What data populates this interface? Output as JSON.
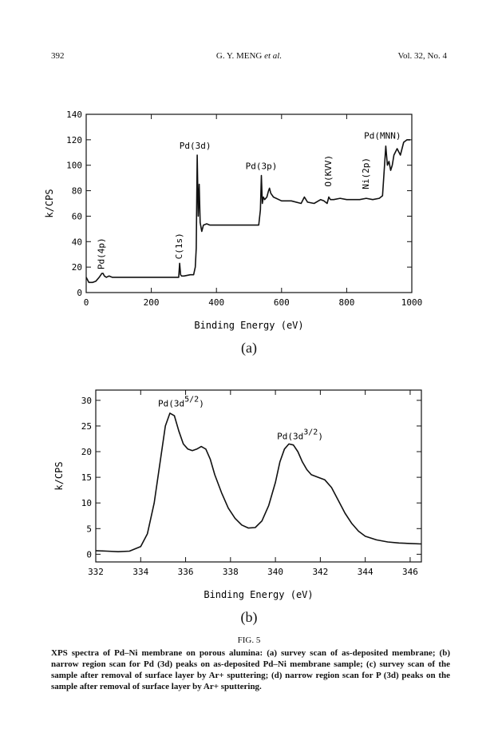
{
  "header": {
    "page_number": "392",
    "authors": "G. Y. MENG",
    "authors_suffix": "et al.",
    "volume": "Vol. 32, No. 4"
  },
  "figure": {
    "number": "FIG. 5",
    "caption": "XPS spectra of Pd–Ni membrane on porous alumina: (a) survey scan of as-deposited membrane; (b) narrow region scan for Pd (3d) peaks on as-deposited Pd–Ni membrane sample; (c) survey scan of the sample after removal of surface layer by Ar+ sputtering; (d) narrow region scan for P (3d) peaks on the sample after removal of surface layer by Ar+ sputtering."
  },
  "chart_data": [
    {
      "type": "line",
      "panel_label": "(a)",
      "xlabel": "Binding Energy (eV)",
      "ylabel": "k/CPS",
      "xlim": [
        0,
        1000
      ],
      "ylim": [
        0,
        140
      ],
      "x_ticks": [
        0,
        200,
        400,
        600,
        800,
        1000
      ],
      "y_ticks": [
        0,
        20,
        40,
        60,
        80,
        100,
        120,
        140
      ],
      "x_tick_labels": [
        "0",
        "200",
        "400",
        "600",
        "800",
        "1000"
      ],
      "y_tick_labels": [
        "0",
        "20",
        "40",
        "60",
        "80",
        "100",
        "120",
        "140"
      ],
      "grid": false,
      "series": [
        {
          "x": [
            0,
            8,
            20,
            30,
            40,
            48,
            52,
            56,
            62,
            70,
            80,
            100,
            150,
            200,
            250,
            284,
            287,
            290,
            293,
            300,
            320,
            330,
            335,
            338,
            341,
            344,
            347,
            350,
            355,
            360,
            370,
            380,
            400,
            430,
            460,
            500,
            530,
            535,
            538,
            541,
            544,
            548,
            555,
            560,
            563,
            567,
            575,
            600,
            630,
            660,
            670,
            680,
            700,
            720,
            730,
            740,
            745,
            750,
            760,
            780,
            800,
            820,
            840,
            860,
            880,
            900,
            910,
            915,
            920,
            925,
            930,
            935,
            940,
            945,
            955,
            965,
            975,
            985,
            995
          ],
          "y": [
            12,
            8,
            8,
            9,
            12,
            15,
            15,
            13,
            12,
            13,
            12,
            12,
            12,
            12,
            12,
            12,
            23,
            14,
            13,
            13,
            14,
            14,
            20,
            35,
            108,
            60,
            85,
            55,
            48,
            53,
            54,
            53,
            53,
            53,
            53,
            53,
            53,
            65,
            92,
            70,
            75,
            73,
            75,
            80,
            82,
            78,
            75,
            72,
            72,
            70,
            75,
            71,
            70,
            73,
            72,
            70,
            75,
            73,
            73,
            74,
            73,
            73,
            73,
            74,
            73,
            74,
            76,
            95,
            115,
            100,
            103,
            96,
            100,
            108,
            113,
            108,
            118,
            120,
            120
          ]
        }
      ],
      "annotations": [
        {
          "text": "Pd(4p)",
          "x": 48,
          "y": 15,
          "orientation": "vertical"
        },
        {
          "text": "C(1s)",
          "x": 287,
          "y": 23,
          "orientation": "vertical"
        },
        {
          "text": "Pd(3d)",
          "x": 335,
          "y": 113,
          "orientation": "horizontal"
        },
        {
          "text": "Pd(3p)",
          "x": 538,
          "y": 97,
          "orientation": "horizontal"
        },
        {
          "text": "O(KVV)",
          "x": 745,
          "y": 80,
          "orientation": "vertical"
        },
        {
          "text": "Ni(2p)",
          "x": 860,
          "y": 78,
          "orientation": "vertical"
        },
        {
          "text": "Pd(MNN)",
          "x": 910,
          "y": 121,
          "orientation": "horizontal"
        }
      ]
    },
    {
      "type": "line",
      "panel_label": "(b)",
      "xlabel": "Binding Energy (eV)",
      "ylabel": "k/CPS",
      "xlim": [
        332,
        346.5
      ],
      "ylim": [
        -1.5,
        32
      ],
      "x_ticks": [
        332,
        334,
        336,
        338,
        340,
        342,
        344,
        346
      ],
      "y_ticks": [
        0,
        5,
        10,
        15,
        20,
        25,
        30
      ],
      "x_tick_labels": [
        "332",
        "334",
        "336",
        "338",
        "340",
        "342",
        "344",
        "346"
      ],
      "y_tick_labels": [
        "0",
        "5",
        "10",
        "15",
        "20",
        "25",
        "30"
      ],
      "grid": false,
      "series": [
        {
          "x": [
            332,
            332.5,
            333,
            333.5,
            334,
            334.3,
            334.6,
            334.9,
            335.1,
            335.3,
            335.5,
            335.7,
            335.9,
            336.1,
            336.3,
            336.5,
            336.7,
            336.9,
            337.1,
            337.3,
            337.6,
            337.9,
            338.2,
            338.5,
            338.8,
            339.1,
            339.4,
            339.7,
            340,
            340.2,
            340.4,
            340.6,
            340.8,
            341,
            341.2,
            341.4,
            341.6,
            341.9,
            342.2,
            342.5,
            342.8,
            343.1,
            343.4,
            343.7,
            344,
            344.5,
            345,
            345.5,
            346,
            346.5
          ],
          "y": [
            0.7,
            0.6,
            0.5,
            0.6,
            1.5,
            4,
            10,
            19,
            25,
            27.5,
            27,
            24,
            21.5,
            20.5,
            20.2,
            20.5,
            21,
            20.5,
            18.5,
            15.5,
            12,
            9,
            7,
            5.7,
            5.1,
            5.2,
            6.5,
            9.5,
            14,
            18,
            20.5,
            21.5,
            21.3,
            20,
            18,
            16.5,
            15.5,
            15,
            14.5,
            13,
            10.5,
            8,
            6,
            4.5,
            3.5,
            2.8,
            2.4,
            2.2,
            2.1,
            2.0
          ]
        }
      ],
      "annotations": [
        {
          "text": "Pd(3d",
          "sup": "5/2",
          "close": ")",
          "x": 335.8,
          "y": 28.8
        },
        {
          "text": "Pd(3d",
          "sup": "3/2",
          "close": ")",
          "x": 341.1,
          "y": 22.4
        }
      ]
    }
  ]
}
